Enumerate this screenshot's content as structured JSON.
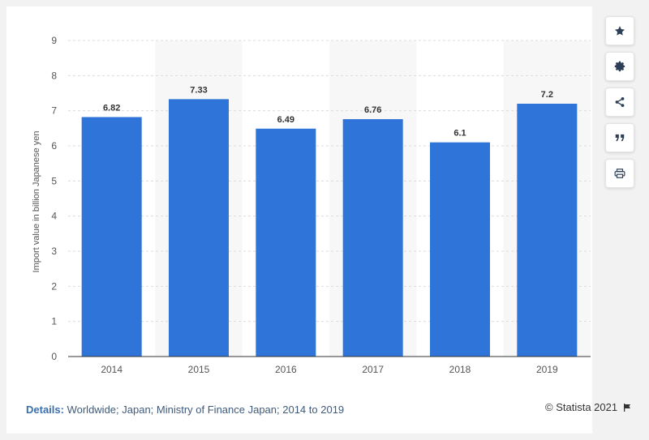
{
  "chart_data": {
    "type": "bar",
    "categories": [
      "2014",
      "2015",
      "2016",
      "2017",
      "2018",
      "2019"
    ],
    "values": [
      6.82,
      7.33,
      6.49,
      6.76,
      6.1,
      7.2
    ],
    "data_labels": [
      "6.82",
      "7.33",
      "6.49",
      "6.76",
      "6.1",
      "7.2"
    ],
    "title": "",
    "xlabel": "",
    "ylabel": "Import value in billion Japanese yen",
    "ylim": [
      0,
      9
    ],
    "yticks": [
      "0",
      "1",
      "2",
      "3",
      "4",
      "5",
      "6",
      "7",
      "8",
      "9"
    ],
    "grid": true,
    "legend": "none",
    "bar_color": "#2f74d9",
    "alt_band_color": "#f7f7f7"
  },
  "toolbar": {
    "items": [
      {
        "icon": "star-icon",
        "label": "Favorite"
      },
      {
        "icon": "gear-icon",
        "label": "Settings"
      },
      {
        "icon": "share-icon",
        "label": "Share"
      },
      {
        "icon": "quote-icon",
        "label": "Cite"
      },
      {
        "icon": "print-icon",
        "label": "Print"
      }
    ]
  },
  "footer": {
    "details_label": "Details:",
    "details_text": " Worldwide; Japan; Ministry of Finance Japan; 2014 to 2019",
    "credit": "© Statista 2021",
    "flag_icon": "flag-icon"
  }
}
